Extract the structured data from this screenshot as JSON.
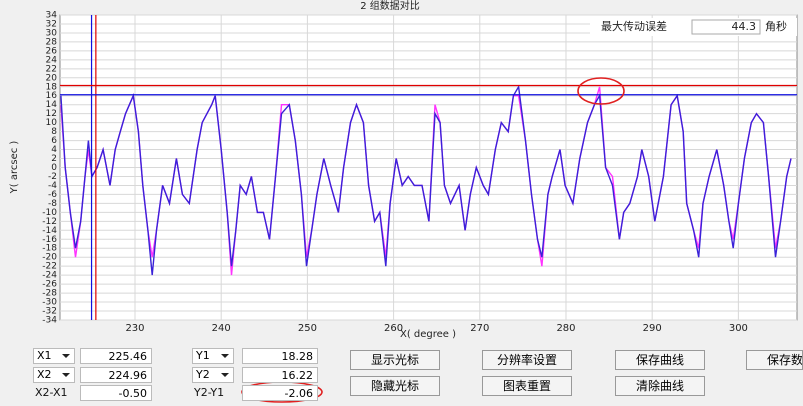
{
  "chart_data": {
    "type": "line",
    "title": "2 组数据对比",
    "x_label": "X( degree )",
    "y_label": "Y( arcsec )",
    "x": [
      221.4,
      221.9,
      222.5,
      223.1,
      223.7,
      224.2,
      224.6,
      225.0,
      225.6,
      226.3,
      227.1,
      227.7,
      228.3,
      228.9,
      229.8,
      230.4,
      230.9,
      231.5,
      232.0,
      232.5,
      233.2,
      234.0,
      234.8,
      235.5,
      236.3,
      237.2,
      237.8,
      238.9,
      239.3,
      240.0,
      240.7,
      241.2,
      241.7,
      242.2,
      242.9,
      243.5,
      244.2,
      244.9,
      245.6,
      246.3,
      247.0,
      247.9,
      248.6,
      249.3,
      249.9,
      250.5,
      251.1,
      251.9,
      252.7,
      253.6,
      254.2,
      255.0,
      255.7,
      256.5,
      257.1,
      257.8,
      258.4,
      259.1,
      259.6,
      260.3,
      261.0,
      261.7,
      262.4,
      263.3,
      264.1,
      264.8,
      265.4,
      265.9,
      266.6,
      267.6,
      268.3,
      268.9,
      269.6,
      270.4,
      271.0,
      271.8,
      272.5,
      273.3,
      273.9,
      274.5,
      275.3,
      276.0,
      276.7,
      277.2,
      277.9,
      278.4,
      279.3,
      279.9,
      280.8,
      281.6,
      282.5,
      283.3,
      283.9,
      284.6,
      285.4,
      286.2,
      286.7,
      287.4,
      288.3,
      288.8,
      289.6,
      290.3,
      291.3,
      292.2,
      292.9,
      293.6,
      294.0,
      294.8,
      295.4,
      295.9,
      296.6,
      297.5,
      298.3,
      298.9,
      299.4,
      300.0,
      300.7,
      301.5,
      302.1,
      302.9,
      303.5,
      304.3,
      304.9,
      305.6,
      306.1
    ],
    "series": [
      {
        "color": "#3a22d8",
        "values": [
          16,
          0,
          -10,
          -18,
          -12,
          -2,
          6,
          -2,
          0,
          4,
          -4,
          4,
          8,
          12,
          16,
          8,
          -4,
          -14,
          -24,
          -14,
          -4,
          -8,
          2,
          -6,
          -8,
          4,
          10,
          14,
          16,
          4,
          -10,
          -22,
          -14,
          -4,
          -6,
          -2,
          -10,
          -10,
          -16,
          -2,
          12,
          14,
          6,
          -6,
          -22,
          -14,
          -6,
          2,
          -4,
          -10,
          0,
          10,
          14,
          10,
          -4,
          -12,
          -10,
          -22,
          -8,
          2,
          -4,
          -2,
          -4,
          -4,
          -12,
          12,
          10,
          -4,
          -8,
          -4,
          -14,
          -6,
          0,
          -4,
          -6,
          4,
          10,
          8,
          16,
          18,
          6,
          -6,
          -16,
          -20,
          -6,
          -2,
          4,
          -4,
          -8,
          2,
          10,
          14,
          16,
          0,
          -4,
          -16,
          -10,
          -8,
          -2,
          4,
          -2,
          -12,
          -2,
          14,
          16,
          8,
          -8,
          -14,
          -20,
          -8,
          -2,
          4,
          -4,
          -12,
          -18,
          -8,
          2,
          10,
          12,
          10,
          -2,
          -20,
          -12,
          -2,
          2
        ]
      },
      {
        "color": "#ff33ff",
        "values": [
          14,
          0,
          -10,
          -20,
          -12,
          -2,
          4,
          -2,
          0,
          4,
          -4,
          4,
          8,
          12,
          16,
          8,
          -4,
          -14,
          -20,
          -14,
          -4,
          -8,
          2,
          -6,
          -8,
          4,
          10,
          14,
          16,
          4,
          -10,
          -24,
          -14,
          -4,
          -6,
          -2,
          -10,
          -10,
          -16,
          -2,
          14,
          14,
          6,
          -6,
          -20,
          -14,
          -6,
          2,
          -4,
          -10,
          0,
          10,
          14,
          10,
          -4,
          -12,
          -10,
          -20,
          -8,
          2,
          -4,
          -2,
          -4,
          -4,
          -12,
          14,
          10,
          -4,
          -8,
          -4,
          -14,
          -6,
          0,
          -4,
          -6,
          4,
          10,
          8,
          16,
          16,
          6,
          -6,
          -16,
          -22,
          -6,
          -2,
          4,
          -4,
          -8,
          2,
          10,
          14,
          18,
          0,
          -2,
          -16,
          -10,
          -8,
          -2,
          4,
          -2,
          -12,
          -2,
          14,
          16,
          8,
          -8,
          -14,
          -18,
          -8,
          -2,
          4,
          -4,
          -12,
          -16,
          -8,
          2,
          10,
          12,
          10,
          -2,
          -18,
          -12,
          -2,
          2
        ]
      }
    ],
    "xlim": [
      221.3,
      306.8
    ],
    "ylim": [
      -34,
      34
    ],
    "xticks": [
      230,
      240,
      250,
      260,
      270,
      280,
      290,
      300
    ],
    "yticks": [
      -34,
      -32,
      -30,
      -28,
      -26,
      -24,
      -22,
      -20,
      -18,
      -16,
      -14,
      -12,
      -10,
      -8,
      -6,
      -4,
      -2,
      0,
      2,
      4,
      6,
      8,
      10,
      12,
      14,
      16,
      18,
      20,
      22,
      24,
      26,
      28,
      30,
      32,
      34
    ],
    "grid": true
  },
  "max_error": {
    "label": "最大传动误差",
    "value": 44.3,
    "unit": "角秒"
  },
  "cursors": {
    "x1": {
      "name": "X1",
      "value": 225.46,
      "color": "#e00000"
    },
    "x2": {
      "name": "X2",
      "value": 224.96,
      "color": "#1010e0"
    },
    "dx": {
      "name": "X2-X1",
      "value": -0.5,
      "label": "-0.50"
    },
    "y1": {
      "name": "Y1",
      "value": 18.28,
      "color": "#e00000"
    },
    "y2": {
      "name": "Y2",
      "value": 16.22,
      "color": "#1010e0"
    },
    "dy": {
      "name": "Y2-Y1",
      "value": -2.06
    }
  },
  "buttons": [
    "显示光标",
    "隐藏光标",
    "分辨率设置",
    "图表重置",
    "保存曲线",
    "清除曲线",
    "保存数据"
  ]
}
